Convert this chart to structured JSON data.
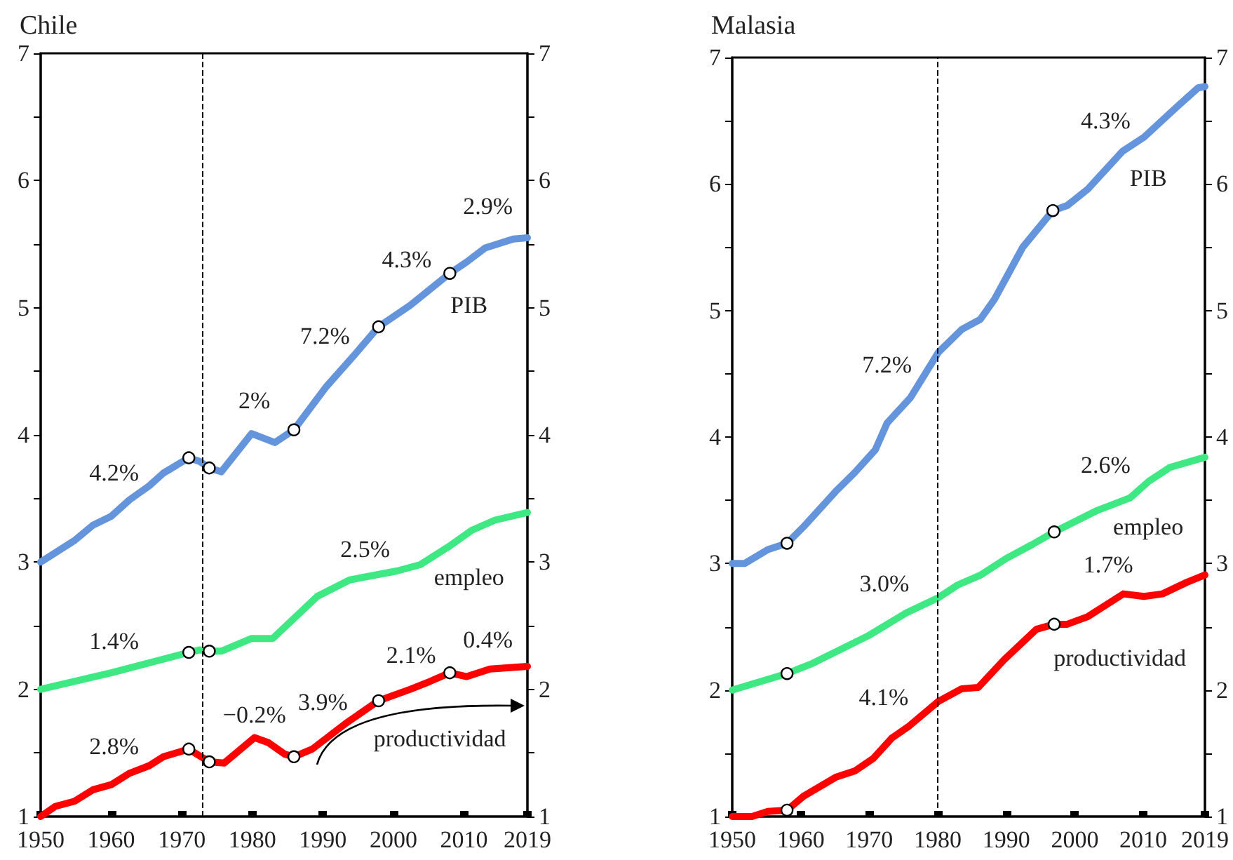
{
  "chart_data": [
    {
      "type": "line",
      "title": "Chile",
      "xlim": [
        1950,
        2019
      ],
      "xticks": [
        1950,
        1960,
        1970,
        1980,
        1990,
        2000,
        2010,
        2019
      ],
      "ylim": [
        1,
        7
      ],
      "yticks": [
        1,
        {
          "value": 1.5,
          "label": null
        },
        2,
        {
          "value": 2.5,
          "label": null
        },
        3,
        {
          "value": 3.5,
          "label": null
        },
        4,
        {
          "value": 4.5,
          "label": null
        },
        5,
        {
          "value": 5.5,
          "label": null
        },
        6,
        {
          "value": 6.5,
          "label": null
        },
        7
      ],
      "y2lim": [
        1,
        7
      ],
      "y2ticks": [
        1,
        {
          "value": 1.5,
          "label": null
        },
        2,
        {
          "value": 2.5,
          "label": null
        },
        3,
        {
          "value": 3.5,
          "label": null
        },
        4,
        {
          "value": 4.5,
          "label": null
        },
        5,
        {
          "value": 5.5,
          "label": null
        },
        6,
        {
          "value": 6.5,
          "label": null
        },
        7
      ],
      "marker": "none",
      "line_style": "solid",
      "series": [
        {
          "name": "PIB",
          "color": "#6495dc",
          "x": [
            1950,
            1954.8,
            1957.4,
            1960,
            1962.6,
            1965.4,
            1967.4,
            1971,
            1972.6,
            1973.9,
            1975.6,
            1979.9,
            1983.2,
            1985.9,
            1990.5,
            1994.5,
            1997.9,
            2002.4,
            2008,
            2010.4,
            2013,
            2017,
            2019
          ],
          "values": [
            3.0,
            3.17,
            3.29,
            3.36,
            3.49,
            3.6,
            3.7,
            3.82,
            3.79,
            3.74,
            3.71,
            4.01,
            3.94,
            4.04,
            4.38,
            4.63,
            4.85,
            5.02,
            5.27,
            5.36,
            5.47,
            5.54,
            5.55
          ]
        },
        {
          "name": "empleo",
          "color": "#3ee882",
          "x": [
            1950,
            1960,
            1971,
            1972.6,
            1973.9,
            1975.6,
            1979.9,
            1982.9,
            1989.2,
            1993.8,
            2000.5,
            2003.8,
            2007.8,
            2011.1,
            2014.4,
            2019
          ],
          "values": [
            2.0,
            2.13,
            2.29,
            2.31,
            2.3,
            2.3,
            2.4,
            2.4,
            2.73,
            2.86,
            2.93,
            2.98,
            3.12,
            3.25,
            3.33,
            3.39
          ]
        },
        {
          "name": "productividad",
          "color": "#ff0000",
          "x": [
            1950,
            1952.1,
            1954.8,
            1957.4,
            1960,
            1962.6,
            1965.4,
            1967.4,
            1971,
            1973.9,
            1976,
            1980.3,
            1982.3,
            1984.6,
            1985.9,
            1988.5,
            1993.2,
            1997.9,
            2002.4,
            2005.1,
            2008,
            2010.4,
            2013.7,
            2019
          ],
          "values": [
            1.0,
            1.08,
            1.12,
            1.21,
            1.25,
            1.34,
            1.4,
            1.47,
            1.53,
            1.43,
            1.42,
            1.62,
            1.58,
            1.49,
            1.47,
            1.53,
            1.73,
            1.91,
            2.0,
            2.06,
            2.13,
            2.1,
            2.16,
            2.18
          ]
        },
        {
          "type": "scatter",
          "marker": "circle",
          "color": "#ffffff",
          "x": [
            1971,
            1973.9,
            1985.9,
            1997.9,
            2008,
            1971,
            1973.9,
            1971,
            1973.9,
            1985.9,
            1997.9,
            2008
          ],
          "values": [
            3.82,
            3.74,
            4.04,
            4.85,
            5.27,
            2.29,
            2.3,
            1.53,
            1.43,
            1.47,
            1.91,
            2.13
          ]
        }
      ],
      "ref_lines": [
        {
          "axis": "x",
          "value": 1973,
          "label": null,
          "color": "#000000",
          "line_style": "dashed"
        }
      ],
      "annotations": [
        "4.2%",
        "2%",
        "7.2%",
        "4.3%",
        "2.9%",
        "1.4%",
        "2.5%",
        "2.8%",
        "−0.2%",
        "3.9%",
        "2.1%",
        "0.4%"
      ]
    },
    {
      "type": "line",
      "title": "Malasia",
      "xlim": [
        1950,
        2019
      ],
      "xticks": [
        1950,
        1960,
        1970,
        1980,
        1990,
        2000,
        2010,
        2019
      ],
      "ylim": [
        1,
        7
      ],
      "yticks": [
        1,
        {
          "value": 1.5,
          "label": null
        },
        2,
        {
          "value": 2.5,
          "label": null
        },
        3,
        {
          "value": 3.5,
          "label": null
        },
        4,
        {
          "value": 4.5,
          "label": null
        },
        5,
        {
          "value": 5.5,
          "label": null
        },
        6,
        {
          "value": 6.5,
          "label": null
        },
        7
      ],
      "y2lim": [
        1,
        7
      ],
      "y2ticks": [
        1,
        {
          "value": 1.5,
          "label": null
        },
        2,
        {
          "value": 2.5,
          "label": null
        },
        3,
        {
          "value": 3.5,
          "label": null
        },
        4,
        {
          "value": 4.5,
          "label": null
        },
        5,
        {
          "value": 5.5,
          "label": null
        },
        6,
        {
          "value": 6.5,
          "label": null
        },
        7
      ],
      "marker": "none",
      "line_style": "solid",
      "series": [
        {
          "name": "PIB",
          "color": "#6495dc",
          "x": [
            1950,
            1951.8,
            1955.2,
            1958,
            1960.4,
            1965.1,
            1967.9,
            1970.9,
            1972.6,
            1976,
            1980.1,
            1983.5,
            1986.2,
            1988.3,
            1992.4,
            1996.8,
            1998.9,
            2001.9,
            2007,
            2010.1,
            2014.9,
            2018,
            2019
          ],
          "values": [
            3.0,
            3.0,
            3.11,
            3.16,
            3.29,
            3.57,
            3.72,
            3.9,
            4.11,
            4.31,
            4.67,
            4.85,
            4.93,
            5.09,
            5.5,
            5.79,
            5.83,
            5.96,
            6.26,
            6.37,
            6.61,
            6.76,
            6.77
          ]
        },
        {
          "name": "empleo",
          "color": "#3ee882",
          "x": [
            1950,
            1958,
            1961.7,
            1969.9,
            1975.4,
            1980.1,
            1982.9,
            1986.3,
            1990,
            1993.8,
            1997,
            2003.3,
            2008.1,
            2010.8,
            2013.9,
            2019
          ],
          "values": [
            2.0,
            2.13,
            2.21,
            2.43,
            2.61,
            2.73,
            2.83,
            2.91,
            3.04,
            3.15,
            3.25,
            3.42,
            3.52,
            3.65,
            3.76,
            3.84
          ]
        },
        {
          "name": "productividad",
          "color": "#ff0000",
          "x": [
            1950,
            1952.9,
            1955.2,
            1958,
            1960.4,
            1965.1,
            1967.9,
            1970.6,
            1973.3,
            1975.7,
            1980.1,
            1983.5,
            1985.9,
            1989.7,
            1994.4,
            1997,
            1998.9,
            2001.9,
            2007.1,
            2010.1,
            2012.8,
            2016.3,
            2019
          ],
          "values": [
            1.0,
            1.0,
            1.04,
            1.05,
            1.16,
            1.31,
            1.36,
            1.46,
            1.62,
            1.71,
            1.91,
            2.01,
            2.02,
            2.24,
            2.48,
            2.52,
            2.52,
            2.58,
            2.76,
            2.74,
            2.76,
            2.85,
            2.91
          ]
        },
        {
          "type": "scatter",
          "marker": "circle",
          "color": "#ffffff",
          "x": [
            1958,
            1996.8,
            1958,
            1997,
            1958,
            1997
          ],
          "values": [
            3.16,
            5.79,
            2.13,
            3.25,
            1.05,
            2.52
          ]
        }
      ],
      "ref_lines": [
        {
          "axis": "x",
          "value": 1980,
          "label": null,
          "color": "#000000",
          "line_style": "dashed"
        }
      ],
      "annotations": [
        "4.3%",
        "7.2%",
        "2.6%",
        "3.0%",
        "1.7%",
        "4.1%"
      ]
    }
  ]
}
